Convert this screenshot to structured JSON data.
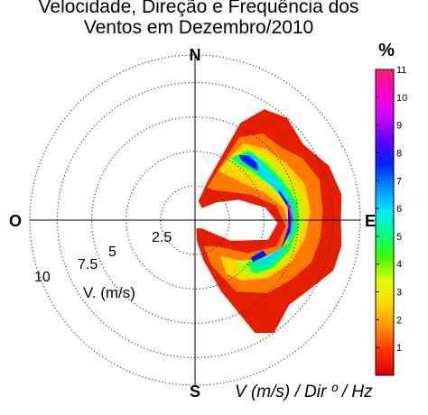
{
  "chart_data": {
    "type": "heatmap",
    "projection": "polar",
    "title_lines": [
      "Velocidade, Direção e Frequência dos",
      "Ventos em Dezembro/2010"
    ],
    "directions": {
      "north": "N",
      "east": "E",
      "south": "S",
      "west": "O"
    },
    "radial_ticks": [
      {
        "value": 2.5,
        "label": "2.5"
      },
      {
        "value": 5,
        "label": "5"
      },
      {
        "value": 7.5,
        "label": "7.5"
      },
      {
        "value": 10,
        "label": "10"
      }
    ],
    "radial_label": "V. (m/s)",
    "radial_max": 12,
    "grid": true,
    "caption": "V (m/s) / Dir º / Hz",
    "colorbar": {
      "label": "%",
      "range": [
        0,
        11
      ],
      "ticks": [
        "1",
        "2",
        "3",
        "4",
        "5",
        "6",
        "7",
        "8",
        "9",
        "10",
        "11"
      ],
      "colormap": "jet-like",
      "stops": [
        "#d90000",
        "#ff3000",
        "#ff8c00",
        "#ffd700",
        "#e0ff00",
        "#40ff00",
        "#00ff80",
        "#00e8ff",
        "#0090ff",
        "#0020ff",
        "#6000ff",
        "#d000ff",
        "#ff00d0",
        "#ff2070"
      ]
    },
    "levels": [
      {
        "level": 0.5,
        "color": "#e51e00",
        "polygon": [
          [
            10,
            1.4
          ],
          [
            18,
            3.0
          ],
          [
            25,
            7.8
          ],
          [
            32,
            9.5
          ],
          [
            42,
            10.0
          ],
          [
            55,
            9.6
          ],
          [
            68,
            10.5
          ],
          [
            80,
            10.8
          ],
          [
            90,
            10.6
          ],
          [
            100,
            10.8
          ],
          [
            110,
            10.7
          ],
          [
            120,
            9.8
          ],
          [
            132,
            9.2
          ],
          [
            145,
            10.0
          ],
          [
            152,
            9.3
          ],
          [
            160,
            5.5
          ],
          [
            168,
            3.0
          ],
          [
            175,
            1.5
          ],
          [
            172,
            0.6
          ],
          [
            140,
            0.8
          ],
          [
            120,
            3.0
          ],
          [
            105,
            5.5
          ],
          [
            92,
            6.0
          ],
          [
            80,
            5.2
          ],
          [
            65,
            3.5
          ],
          [
            50,
            2.0
          ],
          [
            30,
            1.0
          ]
        ]
      },
      {
        "level": 1.5,
        "color": "#ff7a00",
        "polygon": [
          [
            20,
            2.5
          ],
          [
            28,
            6.8
          ],
          [
            38,
            8.0
          ],
          [
            50,
            8.2
          ],
          [
            60,
            9.0
          ],
          [
            72,
            9.5
          ],
          [
            85,
            9.3
          ],
          [
            98,
            9.2
          ],
          [
            110,
            9.0
          ],
          [
            122,
            8.2
          ],
          [
            135,
            7.5
          ],
          [
            150,
            6.0
          ],
          [
            160,
            3.5
          ],
          [
            162,
            2.0
          ],
          [
            140,
            2.5
          ],
          [
            122,
            4.5
          ],
          [
            108,
            6.2
          ],
          [
            94,
            6.6
          ],
          [
            80,
            6.0
          ],
          [
            66,
            4.5
          ],
          [
            50,
            3.2
          ],
          [
            34,
            2.6
          ]
        ]
      },
      {
        "level": 2.5,
        "color": "#ffd400",
        "polygon": [
          [
            25,
            4.0
          ],
          [
            32,
            6.6
          ],
          [
            45,
            7.3
          ],
          [
            58,
            7.8
          ],
          [
            72,
            8.4
          ],
          [
            86,
            8.4
          ],
          [
            100,
            8.1
          ],
          [
            114,
            7.6
          ],
          [
            128,
            6.8
          ],
          [
            142,
            5.6
          ],
          [
            150,
            4.5
          ],
          [
            145,
            3.2
          ],
          [
            128,
            5.0
          ],
          [
            112,
            6.6
          ],
          [
            97,
            7.0
          ],
          [
            82,
            6.5
          ],
          [
            68,
            5.4
          ],
          [
            52,
            4.4
          ],
          [
            36,
            4.0
          ]
        ]
      },
      {
        "level": 3.5,
        "color": "#b4ff00",
        "polygon": [
          [
            28,
            4.8
          ],
          [
            35,
            6.4
          ],
          [
            48,
            6.9
          ],
          [
            62,
            7.3
          ],
          [
            76,
            7.9
          ],
          [
            90,
            7.9
          ],
          [
            104,
            7.6
          ],
          [
            118,
            7.0
          ],
          [
            132,
            6.2
          ],
          [
            140,
            5.2
          ],
          [
            135,
            4.2
          ],
          [
            120,
            5.6
          ],
          [
            105,
            6.9
          ],
          [
            92,
            7.1
          ],
          [
            78,
            6.7
          ],
          [
            64,
            5.8
          ],
          [
            48,
            5.1
          ],
          [
            36,
            4.8
          ]
        ]
      },
      {
        "level": 4.5,
        "color": "#00ff6a",
        "polygon": [
          [
            30,
            5.2
          ],
          [
            38,
            6.4
          ],
          [
            52,
            6.6
          ],
          [
            66,
            7.0
          ],
          [
            80,
            7.5
          ],
          [
            94,
            7.5
          ],
          [
            108,
            7.2
          ],
          [
            122,
            6.6
          ],
          [
            132,
            5.8
          ],
          [
            130,
            4.9
          ],
          [
            118,
            5.8
          ],
          [
            104,
            7.0
          ],
          [
            92,
            7.1
          ],
          [
            80,
            6.8
          ],
          [
            66,
            6.1
          ],
          [
            50,
            5.5
          ],
          [
            38,
            5.2
          ]
        ]
      },
      {
        "level": 5.5,
        "color": "#00dcff",
        "polygon": [
          [
            33,
            5.6
          ],
          [
            42,
            6.4
          ],
          [
            56,
            6.4
          ],
          [
            68,
            6.8
          ],
          [
            82,
            7.2
          ],
          [
            96,
            7.2
          ],
          [
            110,
            6.8
          ],
          [
            122,
            6.2
          ],
          [
            128,
            5.4
          ],
          [
            118,
            5.8
          ],
          [
            106,
            6.9
          ],
          [
            94,
            7.0
          ],
          [
            82,
            6.9
          ],
          [
            70,
            6.3
          ],
          [
            56,
            5.8
          ],
          [
            42,
            5.6
          ]
        ]
      },
      {
        "level": 7.5,
        "color": "#0018ff",
        "polygon": [
          [
            34,
            5.7
          ],
          [
            40,
            6.1
          ],
          [
            48,
            6.1
          ],
          [
            52,
            5.8
          ],
          [
            46,
            5.6
          ],
          [
            38,
            5.5
          ]
        ]
      },
      {
        "level": 7.5,
        "color": "#0018ff",
        "polygon": [
          [
            70,
            6.5
          ],
          [
            82,
            7.0
          ],
          [
            96,
            7.0
          ],
          [
            108,
            6.6
          ],
          [
            104,
            6.6
          ],
          [
            94,
            6.8
          ],
          [
            82,
            6.8
          ],
          [
            72,
            6.4
          ]
        ]
      },
      {
        "level": 7.5,
        "color": "#0018ff",
        "polygon": [
          [
            116,
            5.8
          ],
          [
            126,
            5.2
          ],
          [
            124,
            4.9
          ],
          [
            114,
            5.4
          ]
        ]
      },
      {
        "level": 10,
        "color": "#ff00d2",
        "polygon": [
          [
            78,
            6.9
          ],
          [
            88,
            7.1
          ],
          [
            100,
            7.0
          ],
          [
            98,
            6.95
          ],
          [
            88,
            6.95
          ],
          [
            80,
            6.8
          ]
        ]
      }
    ]
  }
}
